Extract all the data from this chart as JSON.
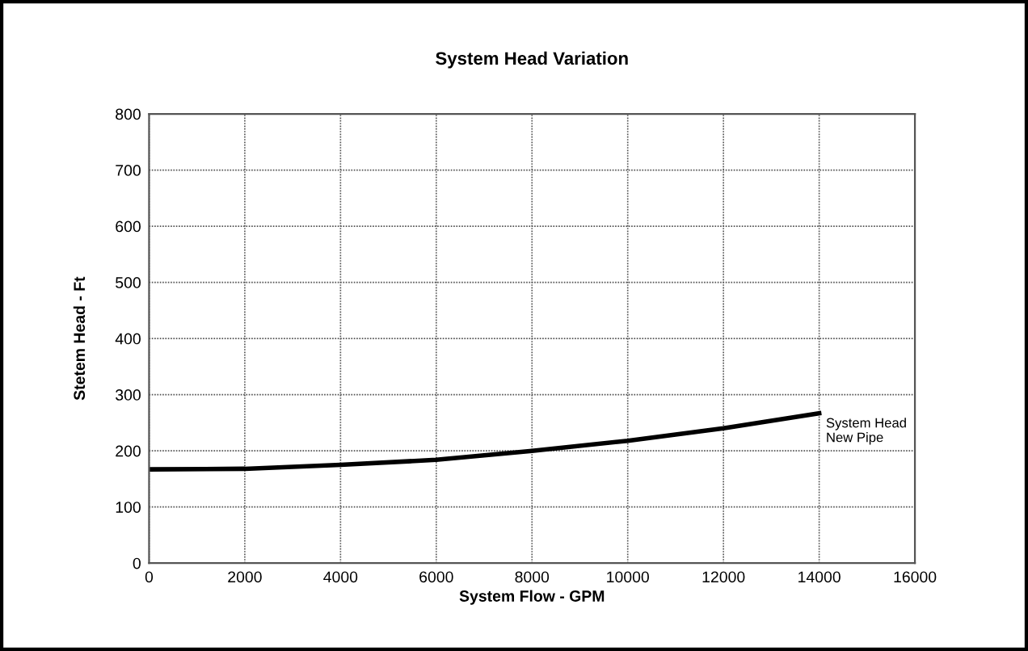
{
  "chart_data": {
    "type": "line",
    "title": "System Head Variation",
    "xlabel": "System Flow - GPM",
    "ylabel": "Stetem Head - Ft",
    "x": [
      0,
      2000,
      4000,
      6000,
      8000,
      10000,
      12000,
      14000
    ],
    "series": [
      {
        "name": "System Head\nNew Pipe",
        "color": "#000000",
        "values": [
          167,
          168,
          175,
          184,
          200,
          218,
          240,
          267
        ]
      }
    ],
    "xlim": [
      0,
      16000
    ],
    "xticks": [
      0,
      2000,
      4000,
      6000,
      8000,
      10000,
      12000,
      14000,
      16000
    ],
    "ylim": [
      0,
      800
    ],
    "yticks": [
      0,
      100,
      200,
      300,
      400,
      500,
      600,
      700,
      800
    ],
    "grid": true,
    "legend": false,
    "marker": "none",
    "line_style": "solid"
  }
}
